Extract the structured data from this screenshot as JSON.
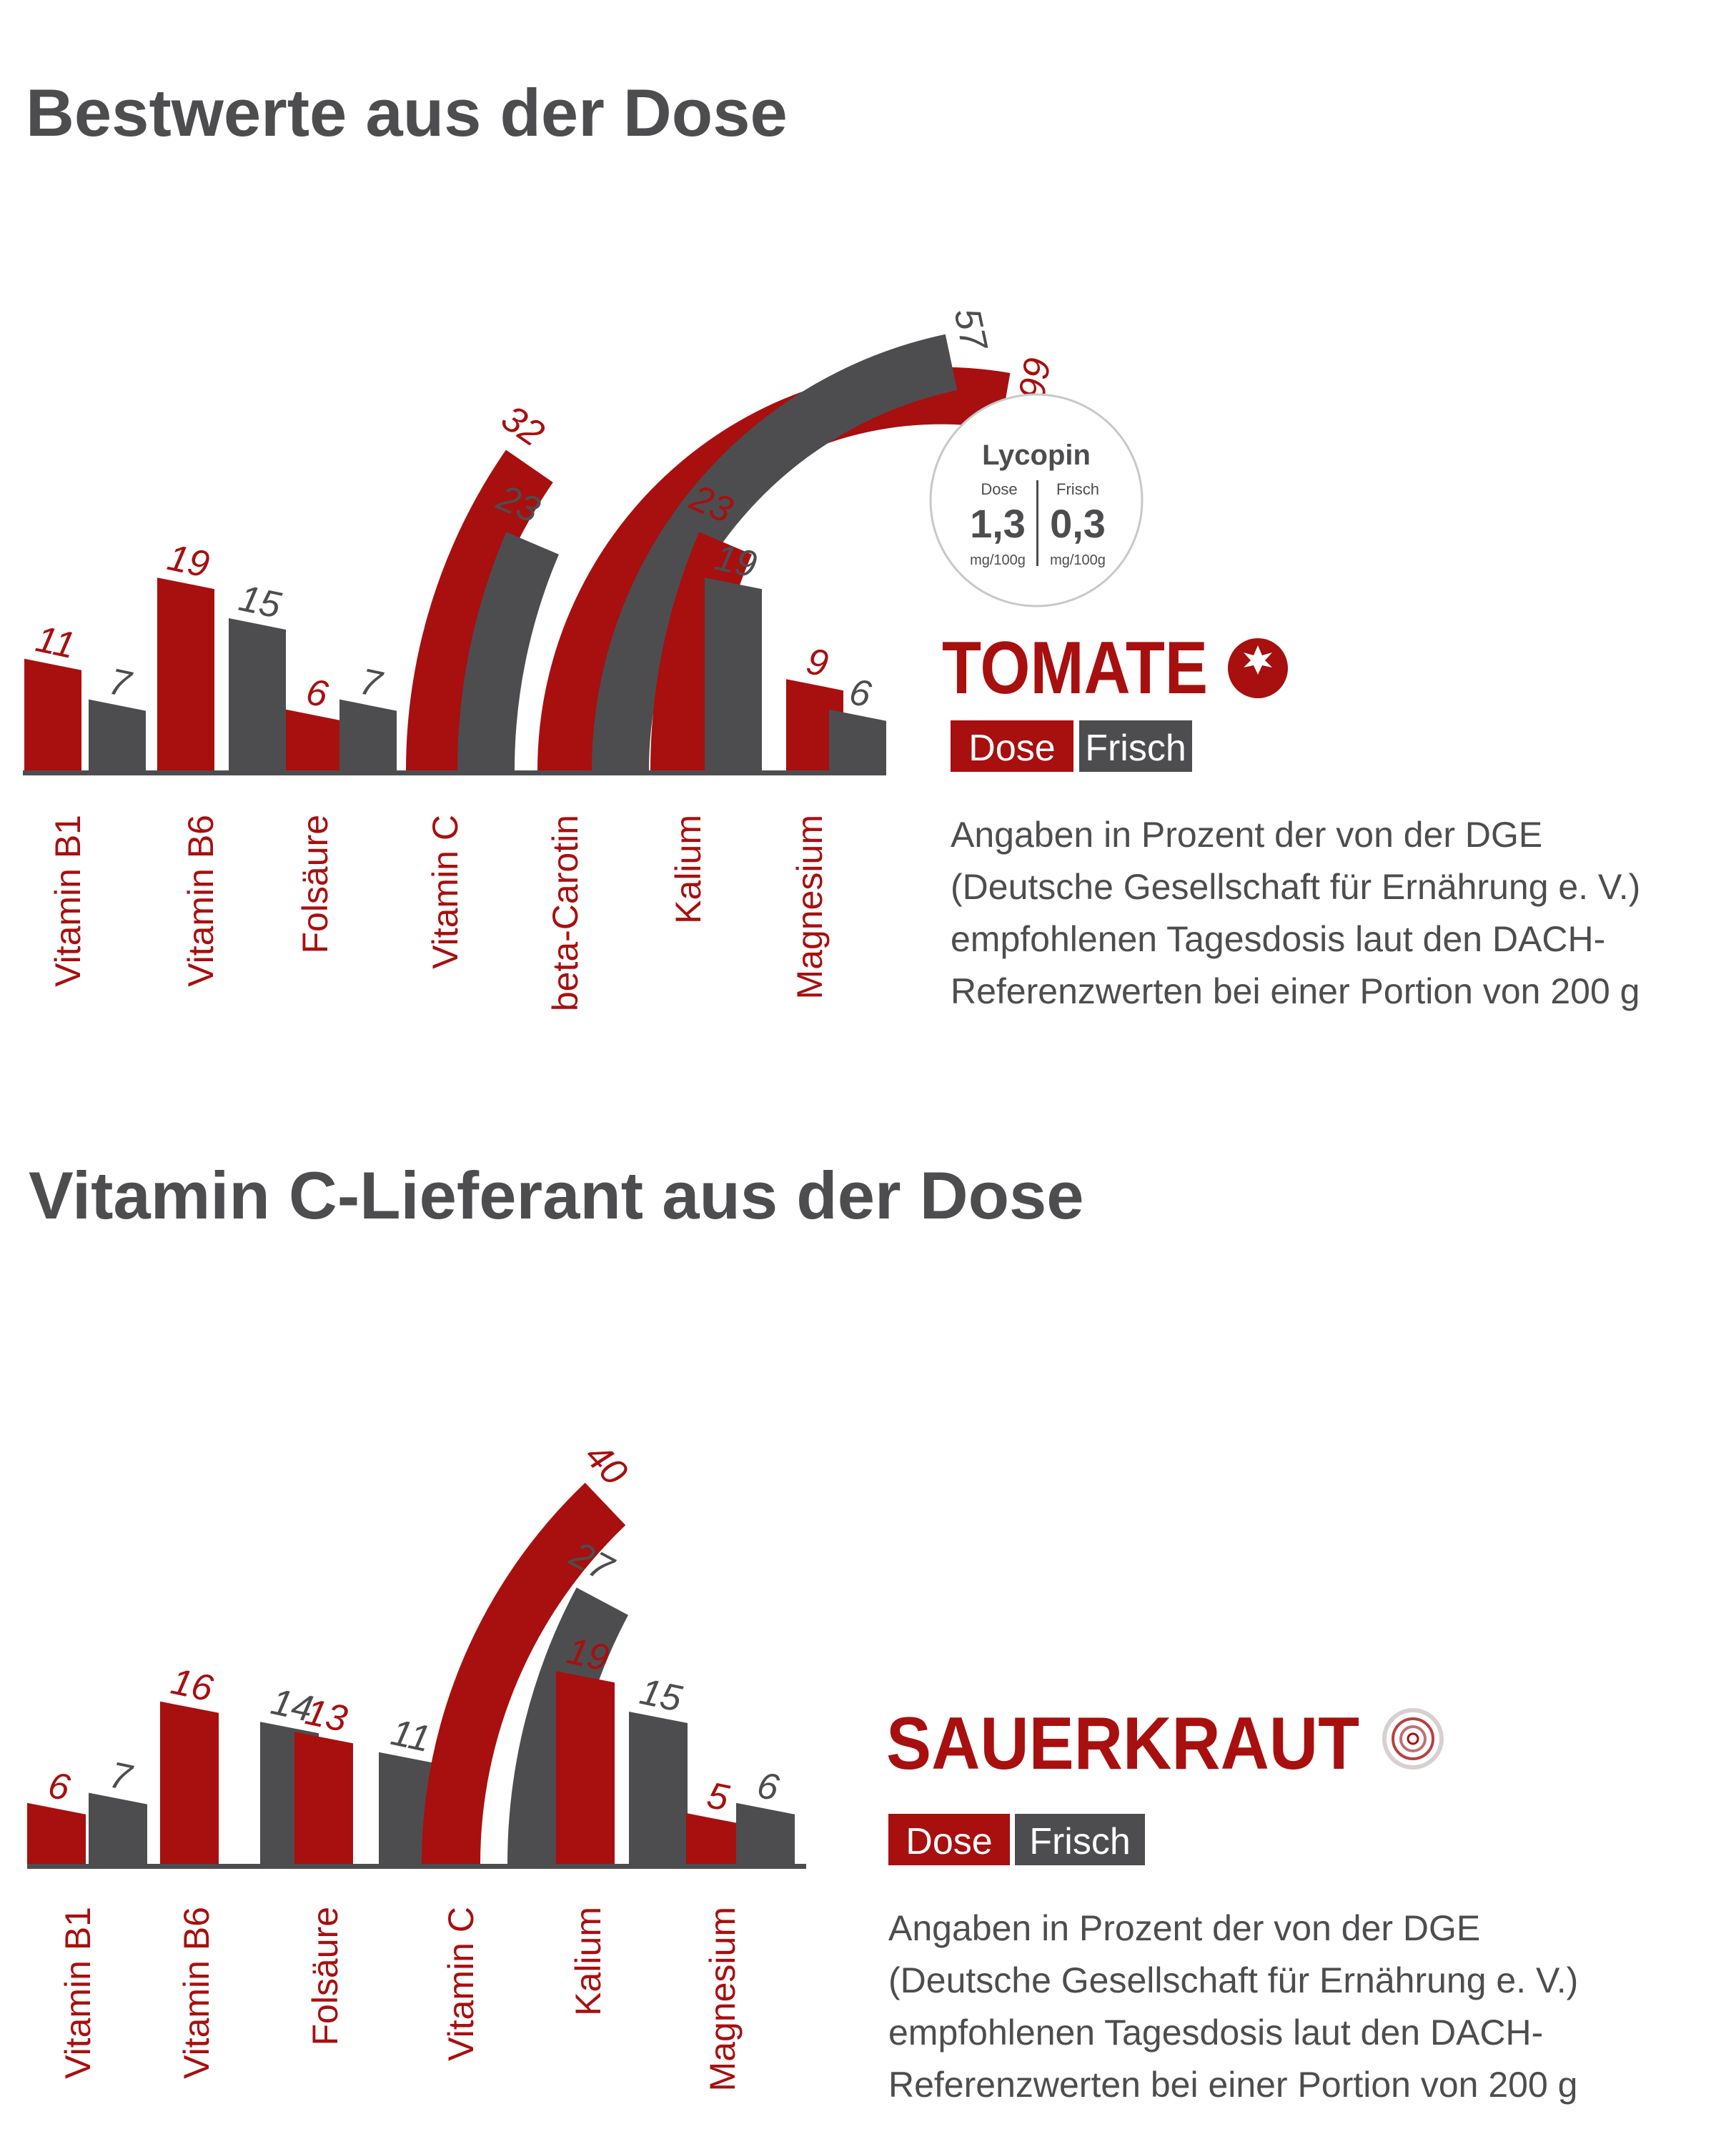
{
  "colors": {
    "dose": "#a80f0f",
    "frisch": "#4d4d4f",
    "title": "#4d4d4f",
    "ring": "#c8c8c8"
  },
  "charts": [
    {
      "title": "Bestwerte aus der Dose",
      "product": "TOMATE",
      "product_icon": "tomato-icon",
      "legend": {
        "dose": "Dose",
        "frisch": "Frisch"
      },
      "note": [
        "Angaben in Prozent der von der DGE",
        "(Deutsche Gesellschaft für Ernährung e. V.)",
        "empfohlenen Tagesdosis laut den DACH-",
        "Referenzwerten bei einer Portion von 200 g"
      ],
      "lycopin": {
        "title": "Lycopin",
        "dose_label": "Dose",
        "dose_value": "1,3",
        "dose_unit": "mg/100g",
        "frisch_label": "Frisch",
        "frisch_value": "0,3",
        "frisch_unit": "mg/100g"
      },
      "chart_data": {
        "type": "bar",
        "unit": "% der empfohlenen Tagesdosis",
        "categories": [
          "Vitamin B1",
          "Vitamin B6",
          "Folsäure",
          "Vitamin C",
          "beta-Carotin",
          "Kalium",
          "Magnesium"
        ],
        "series": [
          {
            "name": "Dose",
            "values": [
              11,
              19,
              6,
              32,
              66,
              23,
              9
            ],
            "labels": [
              "11",
              "19",
              "6",
              "32",
              "66",
              "23",
              "9"
            ]
          },
          {
            "name": "Frisch",
            "values": [
              7,
              15,
              7,
              23,
              57,
              19,
              6
            ],
            "labels": [
              "7",
              "15",
              "7",
              "23",
              "57",
              "19",
              "6"
            ]
          }
        ]
      }
    },
    {
      "title": "Vitamin C-Lieferant aus der Dose",
      "product": "SAUERKRAUT",
      "product_icon": "sauerkraut-icon",
      "legend": {
        "dose": "Dose",
        "frisch": "Frisch"
      },
      "note": [
        "Angaben in Prozent der von der DGE",
        "(Deutsche Gesellschaft für Ernährung e. V.)",
        "empfohlenen Tagesdosis laut den DACH-",
        "Referenzwerten bei einer Portion von 200 g"
      ],
      "chart_data": {
        "type": "bar",
        "unit": "% der empfohlenen Tagesdosis",
        "categories": [
          "Vitamin B1",
          "Vitamin B6",
          "Folsäure",
          "Vitamin C",
          "Kalium",
          "Magnesium"
        ],
        "series": [
          {
            "name": "Dose",
            "values": [
              6,
              16,
              13,
              40,
              19,
              5
            ],
            "labels": [
              "6",
              "16",
              "13",
              "40",
              "19",
              "5"
            ]
          },
          {
            "name": "Frisch",
            "values": [
              7,
              14,
              11,
              27,
              15,
              6
            ],
            "labels": [
              "7",
              "14",
              "11",
              "27",
              "15",
              "6"
            ]
          }
        ]
      }
    }
  ]
}
